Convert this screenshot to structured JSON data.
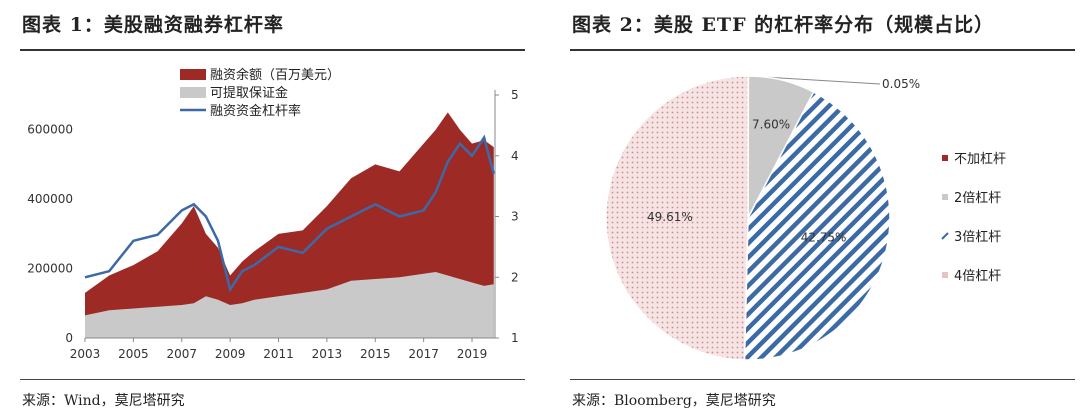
{
  "left": {
    "title": "图表 1：美股融资融券杠杆率",
    "source": "来源：Wind，莫尼塔研究"
  },
  "right": {
    "title": "图表 2：美股 ETF 的杠杆率分布（规模占比）",
    "source": "来源：Bloomberg，莫尼塔研究"
  },
  "chart_data": [
    {
      "type": "area",
      "title": "",
      "x": [
        2003,
        2004,
        2005,
        2006,
        2007,
        2007.5,
        2008,
        2008.5,
        2009,
        2009.5,
        2010,
        2011,
        2012,
        2013,
        2014,
        2015,
        2016,
        2017,
        2017.5,
        2018,
        2018.5,
        2019,
        2019.5,
        2019.9
      ],
      "series": [
        {
          "name": "融资余额（百万美元）",
          "kind": "area",
          "axis": "left",
          "color": "#9e2a26",
          "values": [
            130000,
            180000,
            210000,
            250000,
            330000,
            380000,
            300000,
            260000,
            180000,
            220000,
            250000,
            300000,
            310000,
            380000,
            460000,
            500000,
            480000,
            560000,
            600000,
            650000,
            600000,
            560000,
            570000,
            550000
          ]
        },
        {
          "name": "可提取保证金",
          "kind": "area",
          "axis": "left",
          "color": "#c9c9c9",
          "values": [
            65000,
            80000,
            85000,
            90000,
            95000,
            100000,
            120000,
            110000,
            95000,
            100000,
            110000,
            120000,
            130000,
            140000,
            165000,
            170000,
            175000,
            185000,
            190000,
            180000,
            170000,
            160000,
            150000,
            155000
          ]
        },
        {
          "name": "融资资金杠杆率",
          "kind": "line",
          "axis": "right",
          "color": "#3c6aa6",
          "values": [
            2.0,
            2.1,
            2.6,
            2.7,
            3.1,
            3.2,
            3.0,
            2.6,
            1.8,
            2.1,
            2.2,
            2.5,
            2.4,
            2.8,
            3.0,
            3.2,
            3.0,
            3.1,
            3.4,
            3.9,
            4.2,
            4.0,
            4.3,
            3.7
          ]
        }
      ],
      "xticks": [
        "2003",
        "2005",
        "2007",
        "2009",
        "2011",
        "2013",
        "2015",
        "2017",
        "2019"
      ],
      "xlim": [
        2003,
        2019.95
      ],
      "ylim_left": [
        0,
        700000
      ],
      "yticks_left": [
        "0",
        "200000",
        "400000",
        "600000"
      ],
      "ylim_right": [
        1,
        5
      ],
      "yticks_right": [
        "1",
        "2",
        "3",
        "4",
        "5"
      ],
      "grid": false,
      "legend": "top"
    },
    {
      "type": "pie",
      "title": "",
      "slices": [
        {
          "name": "不加杠杆",
          "value": 0.05,
          "label": "0.05%",
          "color": "#9e2a26",
          "pattern": "solid"
        },
        {
          "name": "2倍杠杆",
          "value": 7.6,
          "label": "7.60%",
          "color": "#c9c9c9",
          "pattern": "solid"
        },
        {
          "name": "3倍杠杆",
          "value": 42.75,
          "label": "42.75%",
          "color": "#3c6aa6",
          "pattern": "diagonal"
        },
        {
          "name": "4倍杠杆",
          "value": 49.61,
          "label": "49.61%",
          "color": "#e7c4c4",
          "pattern": "dots"
        }
      ],
      "legend": "right"
    }
  ]
}
